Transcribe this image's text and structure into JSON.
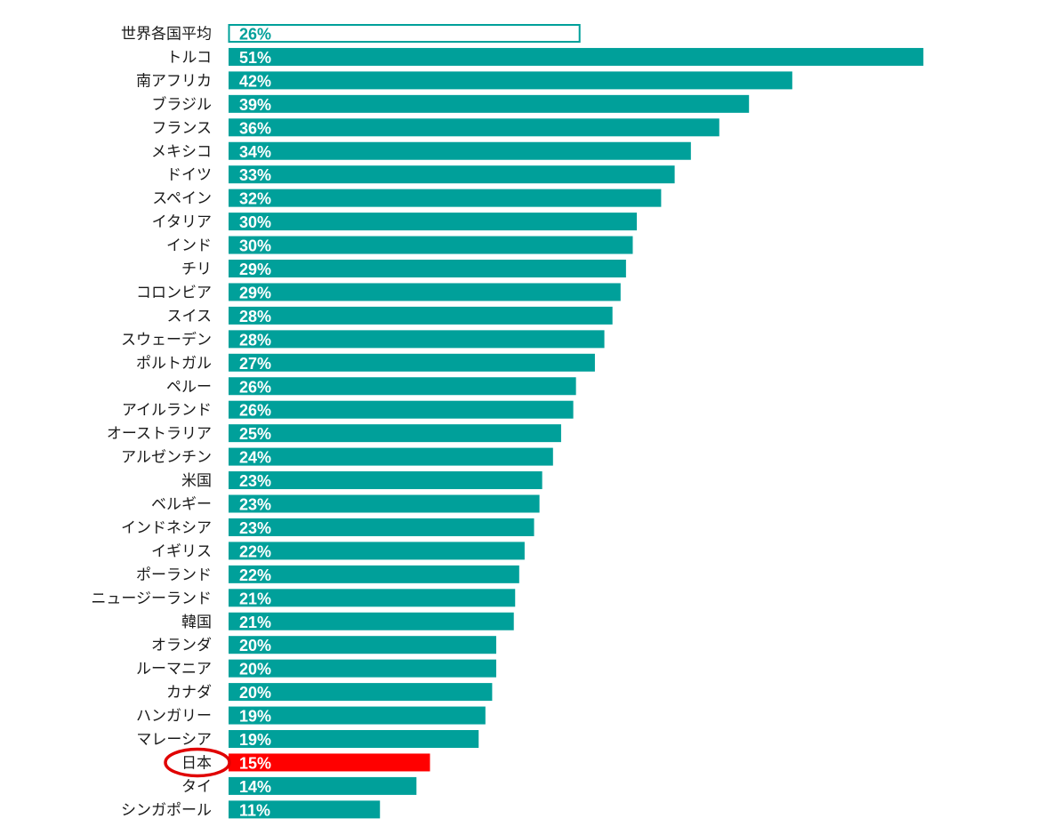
{
  "chart_data": {
    "type": "bar",
    "orientation": "horizontal",
    "title": "",
    "xlabel": "",
    "ylabel": "",
    "xlim": [
      0,
      52
    ],
    "grid": false,
    "legend": "none",
    "unit": "%",
    "colors": {
      "default": "#00A09A",
      "highlight": "#FF0000",
      "average_outline": "#00A09A",
      "average_fill": "#FFFFFF",
      "circle": "#E00000"
    },
    "average_category": "世界各国平均",
    "highlight_category": "日本",
    "categories": [
      "世界各国平均",
      "トルコ",
      "南アフリカ",
      "ブラジル",
      "フランス",
      "メキシコ",
      "ドイツ",
      "スペイン",
      "イタリア",
      "インド",
      "チリ",
      "コロンビア",
      "スイス",
      "スウェーデン",
      "ポルトガル",
      "ペルー",
      "アイルランド",
      "オーストラリア",
      "アルゼンチン",
      "米国",
      "ベルギー",
      "インドネシア",
      "イギリス",
      "ポーランド",
      "ニュージーランド",
      "韓国",
      "オランダ",
      "ルーマニア",
      "カナダ",
      "ハンガリー",
      "マレーシア",
      "日本",
      "タイ",
      "シンガポール"
    ],
    "values": [
      26.0,
      51.4,
      41.7,
      38.5,
      36.3,
      34.2,
      33.0,
      32.0,
      30.2,
      29.9,
      29.4,
      29.0,
      28.4,
      27.8,
      27.1,
      25.7,
      25.5,
      24.6,
      24.0,
      23.2,
      23.0,
      22.6,
      21.9,
      21.5,
      21.2,
      21.1,
      19.8,
      19.8,
      19.5,
      19.0,
      18.5,
      14.9,
      13.9,
      11.2
    ],
    "value_labels": [
      "26%",
      "51%",
      "42%",
      "39%",
      "36%",
      "34%",
      "33%",
      "32%",
      "30%",
      "30%",
      "29%",
      "29%",
      "28%",
      "28%",
      "27%",
      "26%",
      "26%",
      "25%",
      "24%",
      "23%",
      "23%",
      "23%",
      "22%",
      "22%",
      "21%",
      "21%",
      "20%",
      "20%",
      "20%",
      "19%",
      "19%",
      "15%",
      "14%",
      "11%"
    ]
  }
}
